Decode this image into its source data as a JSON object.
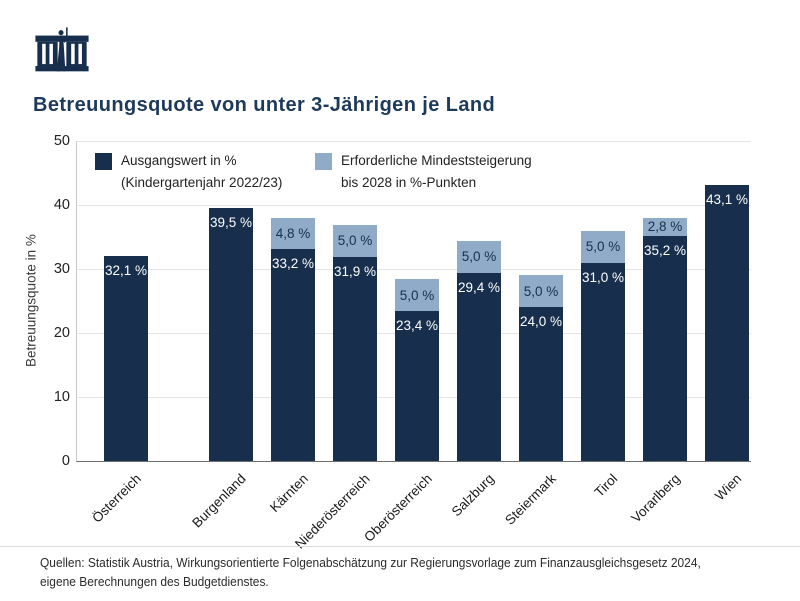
{
  "header": {
    "title": "Betreuungsquote von unter 3-Jährigen je Land",
    "logo": "austrian-parliament-budgetdienst"
  },
  "colors": {
    "bar_dark_navy": "#172f4d",
    "bar_light_blue": "#8fabc8",
    "title_navy": "#1d3a5a",
    "gridline": "#e4e4e4",
    "axis": "#6e6e6e"
  },
  "legend": {
    "items": [
      {
        "line1": "Ausgangswert in %",
        "line2": "(Kindergartenjahr 2022/23)",
        "color": "#172f4d"
      },
      {
        "line1": "Erforderliche Mindeststeigerung",
        "line2": "bis 2028 in %-Punkten",
        "color": "#8fabc8"
      }
    ]
  },
  "chart_data": {
    "type": "bar",
    "stacked": true,
    "title": "Betreuungsquote von unter 3-Jährigen je Land",
    "categories": [
      "Österreich",
      "Burgenland",
      "Kärnten",
      "Niederösterreich",
      "Oberösterreich",
      "Salzburg",
      "Steiermark",
      "Tirol",
      "Vorarlberg",
      "Wien"
    ],
    "series": [
      {
        "name": "Ausgangswert in % (Kindergartenjahr 2022/23)",
        "color": "#172f4d",
        "label_color": "#ffffff",
        "values": [
          32.1,
          39.5,
          33.2,
          31.9,
          23.4,
          29.4,
          24.0,
          31.0,
          35.2,
          43.1
        ],
        "labels": [
          "32,1 %",
          "39,5 %",
          "33,2 %",
          "31,9 %",
          "23,4 %",
          "29,4 %",
          "24,0 %",
          "31,0 %",
          "35,2 %",
          "43,1 %"
        ]
      },
      {
        "name": "Erforderliche Mindeststeigerung bis 2028 in %-Punkten",
        "color": "#8fabc8",
        "label_color": "#16304d",
        "values": [
          0,
          0,
          4.8,
          5.0,
          5.0,
          5.0,
          5.0,
          5.0,
          2.8,
          0
        ],
        "labels": [
          "",
          "",
          "4,8 %",
          "5,0 %",
          "5,0 %",
          "5,0 %",
          "5,0 %",
          "5,0 %",
          "2,8 %",
          ""
        ]
      }
    ],
    "xlabel": "",
    "ylabel": "Betreuungsquote in %",
    "ylim": [
      0,
      50
    ],
    "yticks": [
      0,
      10,
      20,
      30,
      40,
      50
    ],
    "grid": true,
    "legend_position": "inside-top-left",
    "note": "Österreich bar is visually separated from the nine Länder bars"
  },
  "footer": {
    "line1": "Quellen: Statistik Austria, Wirkungsorientierte Folgenabschätzung zur Regierungsvorlage zum Finanzausgleichsgesetz 2024,",
    "line2": "eigene Berechnungen des Budgetdienstes."
  }
}
